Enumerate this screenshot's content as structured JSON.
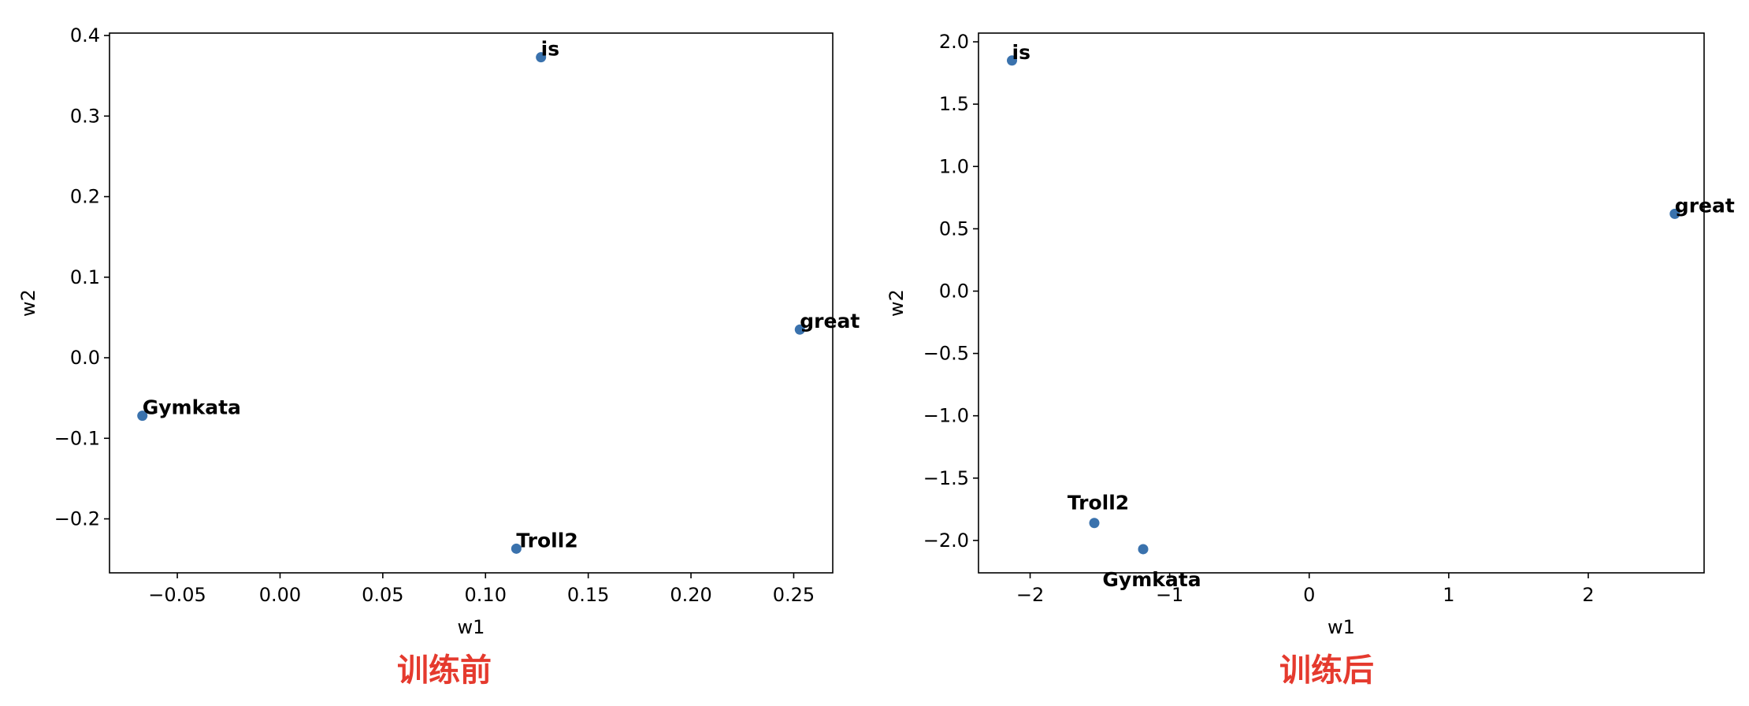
{
  "colors": {
    "point": "#3a72ad",
    "caption": "#e53a2e",
    "axis": "#000000"
  },
  "captions": {
    "left": "训练前",
    "right": "训练后"
  },
  "chart_data": [
    {
      "type": "scatter",
      "title": "",
      "xlabel": "w1",
      "ylabel": "w2",
      "xlim": [
        -0.083,
        0.269
      ],
      "ylim": [
        -0.267,
        0.403
      ],
      "xticks": [
        -0.05,
        0.0,
        0.05,
        0.1,
        0.15,
        0.2,
        0.25
      ],
      "xtick_labels": [
        "−0.05",
        "0.00",
        "0.05",
        "0.10",
        "0.15",
        "0.20",
        "0.25"
      ],
      "yticks": [
        -0.2,
        -0.1,
        0.0,
        0.1,
        0.2,
        0.3,
        0.4
      ],
      "ytick_labels": [
        "−0.2",
        "−0.1",
        "0.0",
        "0.1",
        "0.2",
        "0.3",
        "0.4"
      ],
      "grid": false,
      "points": [
        {
          "label": "is",
          "x": 0.127,
          "y": 0.373
        },
        {
          "label": "great",
          "x": 0.253,
          "y": 0.035
        },
        {
          "label": "Gymkata",
          "x": -0.067,
          "y": -0.072
        },
        {
          "label": "Troll2",
          "x": 0.115,
          "y": -0.237
        }
      ]
    },
    {
      "type": "scatter",
      "title": "",
      "xlabel": "w1",
      "ylabel": "w2",
      "xlim": [
        -2.37,
        2.83
      ],
      "ylim": [
        -2.26,
        2.07
      ],
      "xticks": [
        -2,
        -1,
        0,
        1,
        2
      ],
      "xtick_labels": [
        "−2",
        "−1",
        "0",
        "1",
        "2"
      ],
      "yticks": [
        -2.0,
        -1.5,
        -1.0,
        -0.5,
        0.0,
        0.5,
        1.0,
        1.5,
        2.0
      ],
      "ytick_labels": [
        "−2.0",
        "−1.5",
        "−1.0",
        "−0.5",
        "0.0",
        "0.5",
        "1.0",
        "1.5",
        "2.0"
      ],
      "grid": false,
      "points": [
        {
          "label": "is",
          "x": -2.13,
          "y": 1.85
        },
        {
          "label": "great",
          "x": 2.62,
          "y": 0.62
        },
        {
          "label": "Troll2",
          "x": -1.54,
          "y": -1.86
        },
        {
          "label": "Gymkata",
          "x": -1.19,
          "y": -2.07
        }
      ]
    }
  ]
}
